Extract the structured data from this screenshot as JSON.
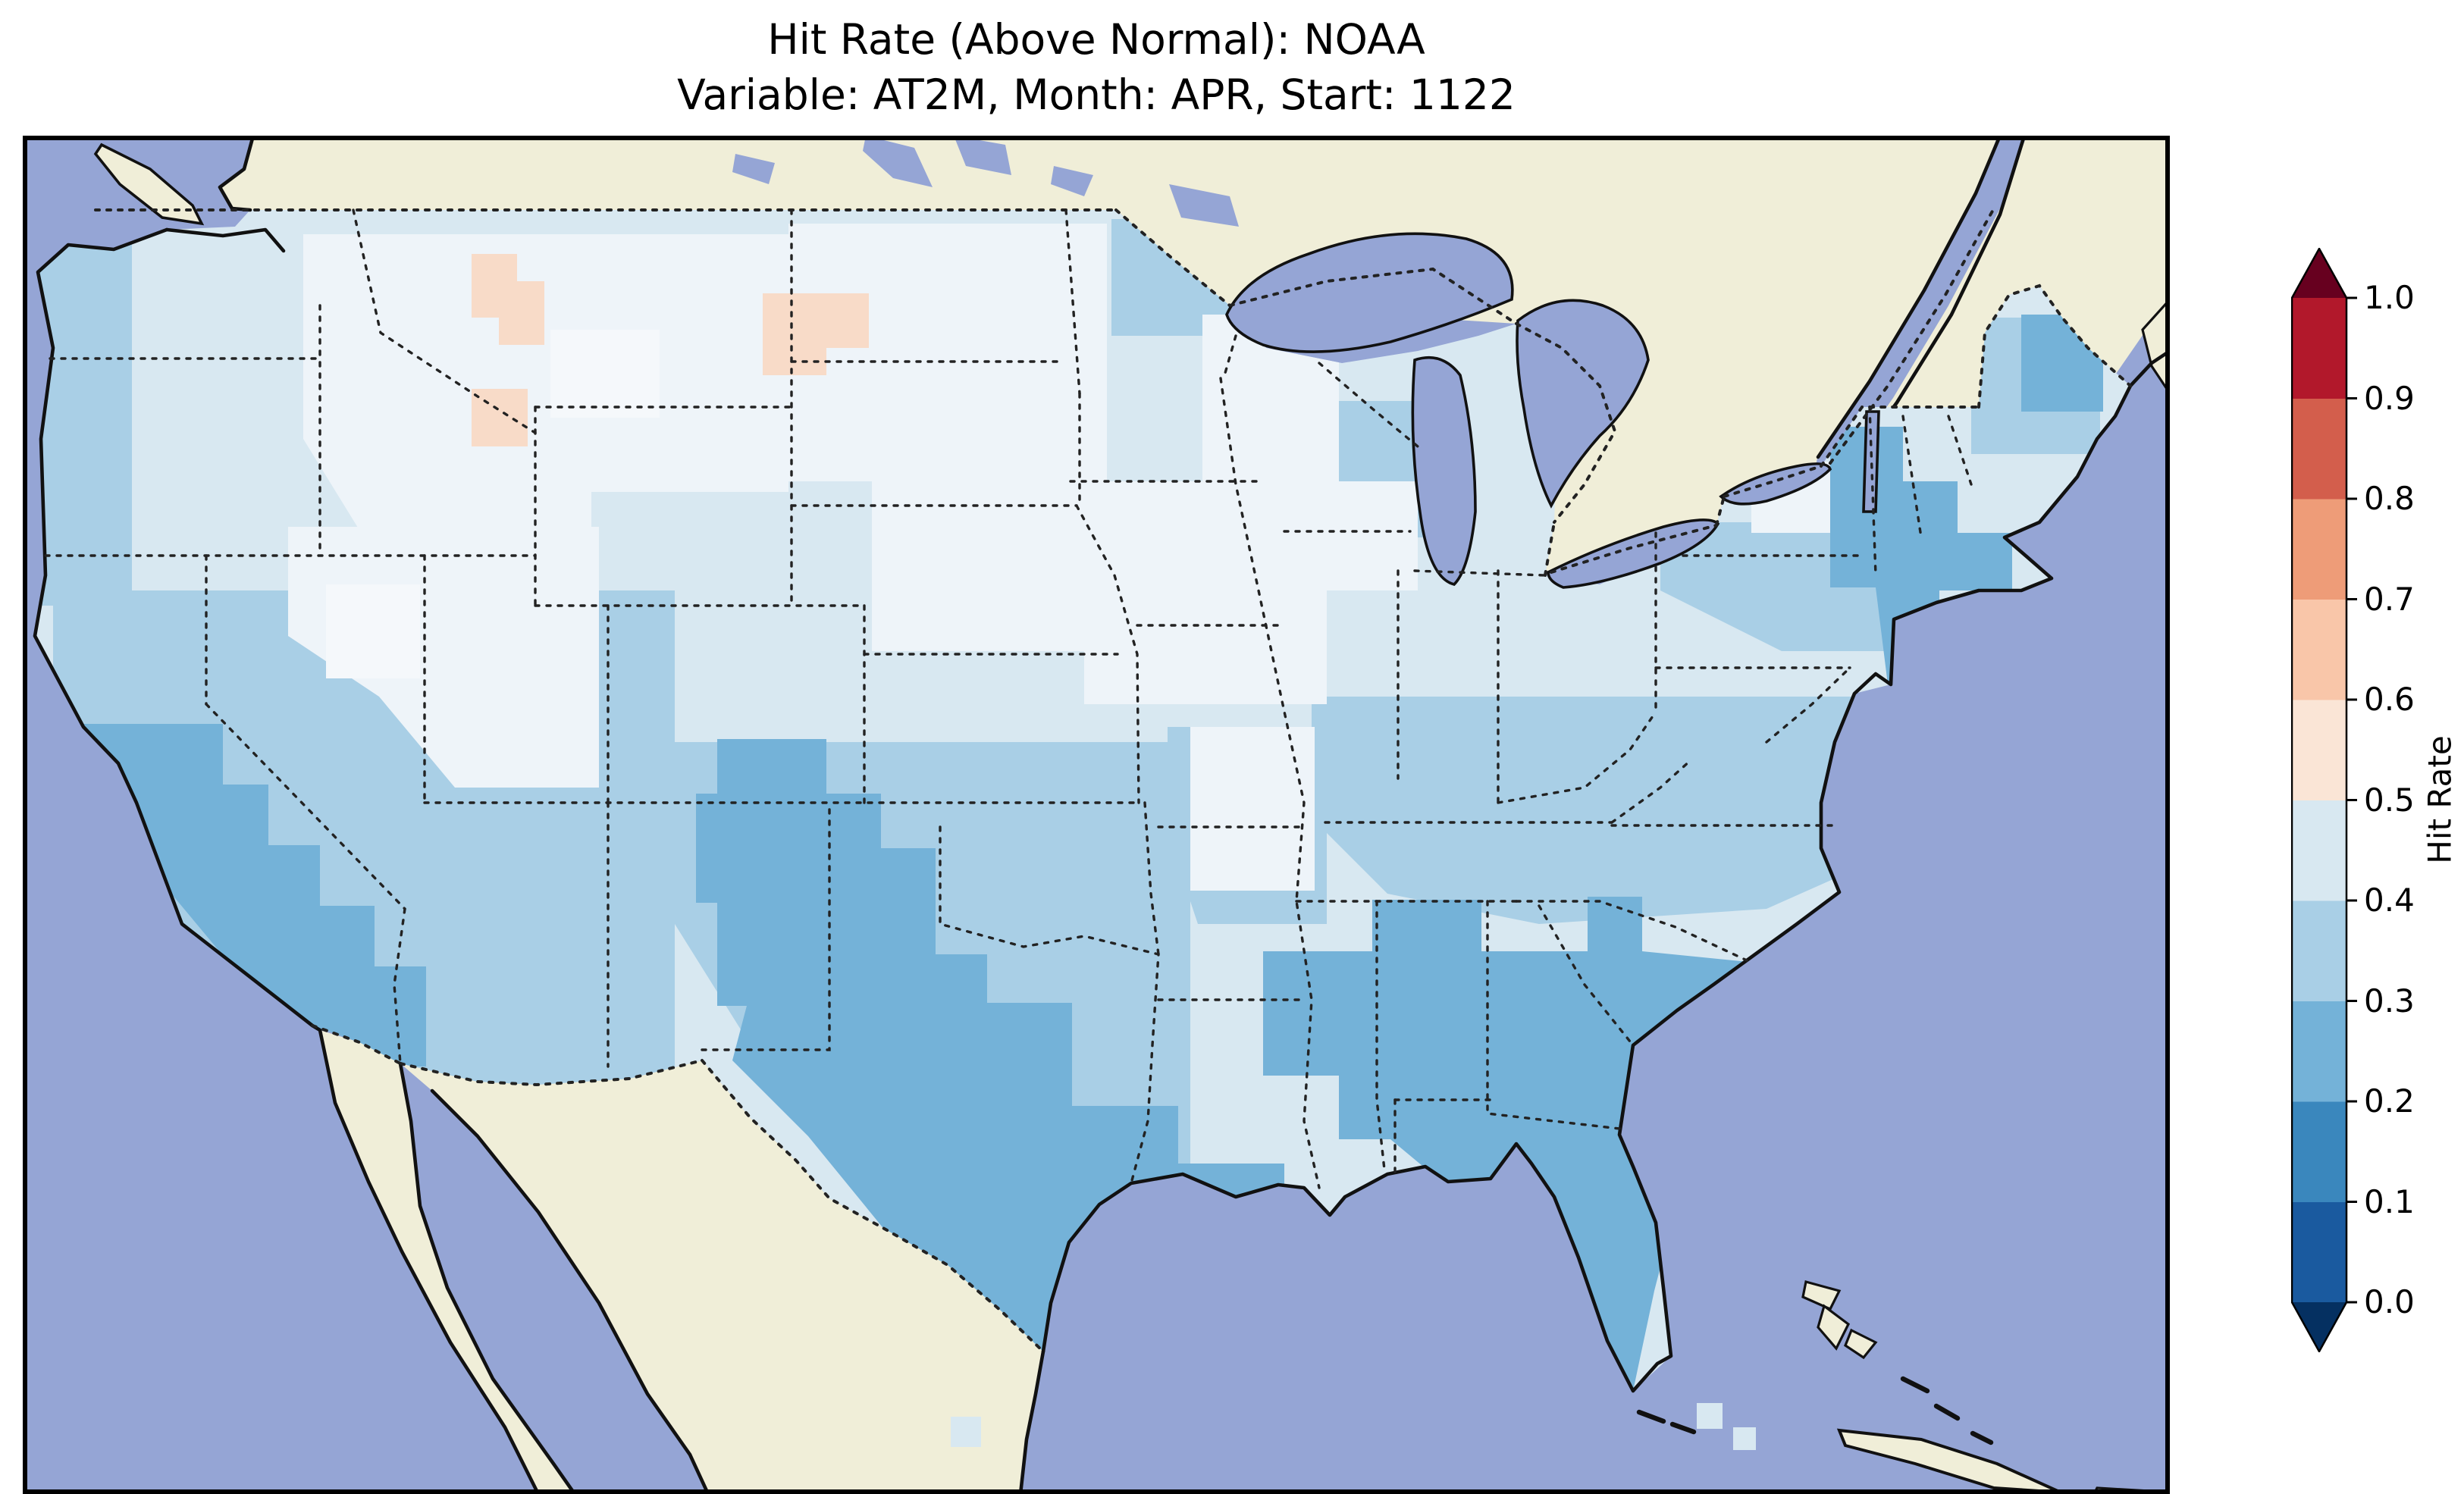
{
  "title": {
    "line1": "Hit Rate (Above Normal): NOAA",
    "line2": "Variable: AT2M, Month: APR, Start: 1122"
  },
  "colorbar": {
    "label": "Hit Rate",
    "ticks": [
      "0.0",
      "0.1",
      "0.2",
      "0.3",
      "0.4",
      "0.5",
      "0.6",
      "0.7",
      "0.8",
      "0.9",
      "1.0"
    ],
    "colormap": "RdBu_r",
    "extend_min_color": "#053061",
    "extend_max_color": "#67001f",
    "segments": [
      {
        "range": [
          0.0,
          0.1
        ],
        "color": "#1a5a9f"
      },
      {
        "range": [
          0.1,
          0.2
        ],
        "color": "#3a87bd"
      },
      {
        "range": [
          0.2,
          0.3
        ],
        "color": "#74b2d8"
      },
      {
        "range": [
          0.3,
          0.4
        ],
        "color": "#a9cfe6"
      },
      {
        "range": [
          0.4,
          0.5
        ],
        "color": "#d8e8f1"
      },
      {
        "range": [
          0.5,
          0.6
        ],
        "color": "#fae5d6"
      },
      {
        "range": [
          0.6,
          0.7
        ],
        "color": "#f9c6a9"
      },
      {
        "range": [
          0.7,
          0.8
        ],
        "color": "#ee9c78"
      },
      {
        "range": [
          0.8,
          0.9
        ],
        "color": "#d35e4c"
      },
      {
        "range": [
          0.9,
          1.0
        ],
        "color": "#b2182b"
      }
    ]
  },
  "colors": {
    "ocean": "#95a5d5",
    "lake": "#95a5d5",
    "land": "#f0eed8",
    "base_04_05": "#d8e8f1",
    "mid_03_04": "#a9cfe6",
    "dark_02_03": "#74b2d8",
    "pale": "#eef4f9",
    "white_patch": "#f5f8fb",
    "pink_05_06": "#f8dbc8",
    "coastline": "#111111",
    "border_dots": "#222222"
  },
  "chart_data": {
    "type": "heatmap",
    "title": "Hit Rate (Above Normal): NOAA",
    "subtitle": "Variable: AT2M, Month: APR, Start: 1122",
    "model": "NOAA",
    "category": "Above Normal",
    "variable": "AT2M",
    "month": "APR",
    "start": "1122",
    "region": "Contiguous United States with surrounding Canada/Mexico basemap",
    "colormap": "RdBu_r",
    "bin_width": 0.1,
    "value_range": [
      0.0,
      1.0
    ],
    "colorbar_label": "Hit Rate",
    "colorbar_ticks": [
      0.0,
      0.1,
      0.2,
      0.3,
      0.4,
      0.5,
      0.6,
      0.7,
      0.8,
      0.9,
      1.0
    ],
    "legend_position": "right",
    "regions": [
      {
        "area": "Pacific Northwest (WA/OR/ID)",
        "hit_rate_bin": "0.4-0.5",
        "approx_value": 0.45
      },
      {
        "area": "Montana / northern Rockies scattered patches",
        "hit_rate_bin": "0.5-0.6",
        "approx_value": 0.55
      },
      {
        "area": "Coastal and Southern California",
        "hit_rate_bin": "0.2-0.3",
        "approx_value": 0.25
      },
      {
        "area": "Great Basin (NV/UT)",
        "hit_rate_bin": "0.4-0.6",
        "approx_value": 0.5
      },
      {
        "area": "Colorado Rockies and New Mexico",
        "hit_rate_bin": "0.2-0.3",
        "approx_value": 0.25
      },
      {
        "area": "Northern Plains (Dakotas/MN/WI)",
        "hit_rate_bin": "0.4-0.5",
        "approx_value": 0.45
      },
      {
        "area": "Central Plains (NE/KS/IA/MO)",
        "hit_rate_bin": "0.4-0.5",
        "approx_value": 0.45
      },
      {
        "area": "West Texas",
        "hit_rate_bin": "0.4-0.6",
        "approx_value": 0.5
      },
      {
        "area": "South Texas and western Gulf Coast",
        "hit_rate_bin": "0.2-0.3",
        "approx_value": 0.25
      },
      {
        "area": "Southeast (GA/AL/TN/Carolinas)",
        "hit_rate_bin": "0.2-0.3",
        "approx_value": 0.25
      },
      {
        "area": "Florida peninsula",
        "hit_rate_bin": "0.2-0.3",
        "approx_value": 0.25
      },
      {
        "area": "Ohio Valley and Mid-Atlantic",
        "hit_rate_bin": "0.3-0.5",
        "approx_value": 0.4
      },
      {
        "area": "Coastal New England and NYC area",
        "hit_rate_bin": "0.2-0.3",
        "approx_value": 0.25
      },
      {
        "area": "Interior Northeast",
        "hit_rate_bin": "0.3-0.4",
        "approx_value": 0.35
      }
    ]
  }
}
